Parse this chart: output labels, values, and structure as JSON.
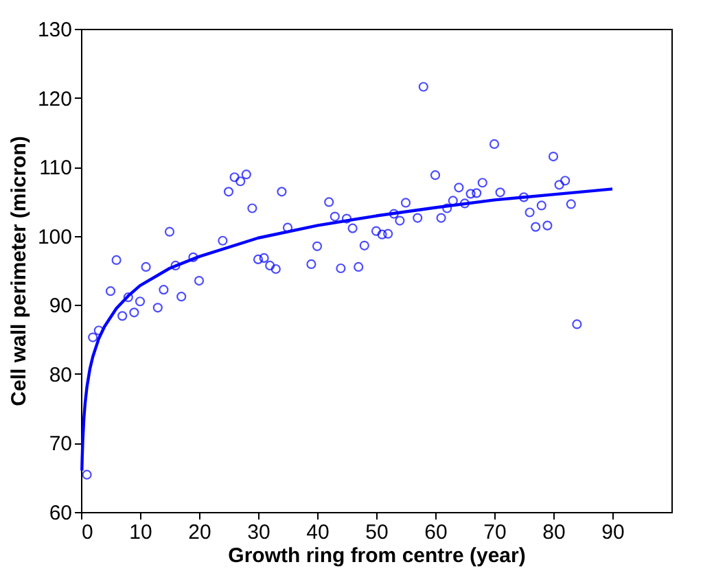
{
  "chart_data": {
    "type": "scatter",
    "xlabel": "Growth ring from centre (year)",
    "ylabel": "Cell wall perimeter (micron)",
    "xlim": [
      0,
      100
    ],
    "xticks": [
      0,
      10,
      20,
      30,
      40,
      50,
      60,
      70,
      80,
      90
    ],
    "ylim": [
      60,
      130
    ],
    "yticks": [
      60,
      70,
      80,
      90,
      100,
      110,
      120,
      130
    ],
    "grid": false,
    "legend": false,
    "series": [
      {
        "color": "#0000ff",
        "marker": "circle",
        "x": [
          1,
          2,
          3,
          5,
          6,
          7,
          8,
          9,
          10,
          11,
          13,
          14,
          15,
          16,
          17,
          19,
          20,
          24,
          25,
          26,
          27,
          28,
          29,
          30,
          31,
          32,
          33,
          34,
          35,
          39,
          40,
          42,
          43,
          44,
          45,
          46,
          47,
          48,
          50,
          51,
          52,
          53,
          54,
          55,
          57,
          58,
          60,
          61,
          62,
          63,
          64,
          65,
          66,
          67,
          68,
          70,
          71,
          75,
          76,
          77,
          78,
          79,
          80,
          81,
          82,
          83,
          84
        ],
        "values": [
          65.4,
          85.3,
          86.3,
          92,
          96.5,
          88.4,
          91.1,
          88.9,
          90.5,
          95.5,
          89.6,
          92.2,
          100.6,
          95.7,
          91.2,
          96.9,
          93.5,
          99.3,
          106.4,
          108.5,
          107.9,
          108.9,
          104,
          96.6,
          96.8,
          95.7,
          95.2,
          106.4,
          101.2,
          95.9,
          98.5,
          104.9,
          102.8,
          95.3,
          102.5,
          101.1,
          95.5,
          98.6,
          100.7,
          100.2,
          100.3,
          103.2,
          102.2,
          104.8,
          102.6,
          121.6,
          108.8,
          102.6,
          104,
          105.1,
          107,
          104.7,
          106.1,
          106.2,
          107.7,
          113.3,
          106.3,
          105.6,
          103.4,
          101.3,
          104.4,
          101.5,
          111.5,
          107.4,
          108,
          104.6,
          87.2
        ]
      },
      {
        "type": "line",
        "color": "#0000ff",
        "marker": "none",
        "line_style": "solid",
        "x": [
          0.15,
          0.2,
          0.3,
          0.5,
          0.7,
          1,
          1.5,
          2,
          3,
          4,
          6,
          8,
          10,
          15,
          20,
          30,
          40,
          50,
          60,
          70,
          80,
          90
        ],
        "values": [
          66,
          67.8,
          70.4,
          73.7,
          75.8,
          78.1,
          80.7,
          82.5,
          85.1,
          86.9,
          89.5,
          91.3,
          92.8,
          95.3,
          97,
          99.7,
          101.5,
          102.9,
          104.1,
          105.2,
          106,
          106.8
        ]
      }
    ]
  }
}
